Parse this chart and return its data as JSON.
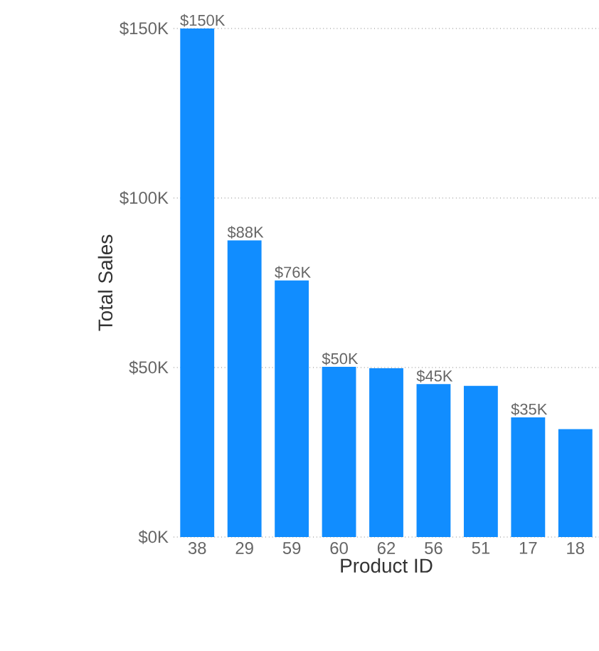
{
  "chart_data": {
    "type": "bar",
    "xlabel": "Product ID",
    "ylabel": "Total Sales",
    "categories": [
      "38",
      "29",
      "59",
      "60",
      "62",
      "56",
      "51",
      "17",
      "18"
    ],
    "values": [
      150,
      87.5,
      75.7,
      50.2,
      49.8,
      45.1,
      44.6,
      35.3,
      31.8
    ],
    "value_labels": [
      "$150K",
      "$88K",
      "$76K",
      "$50K",
      null,
      "$45K",
      null,
      "$35K",
      null
    ],
    "color": "#118dff",
    "ylim": [
      0,
      150
    ],
    "yticks": [
      {
        "value": 0,
        "label": "$0K"
      },
      {
        "value": 50,
        "label": "$50K"
      },
      {
        "value": 100,
        "label": "$100K"
      },
      {
        "value": 150,
        "label": "$150K"
      }
    ],
    "grid": "y"
  }
}
